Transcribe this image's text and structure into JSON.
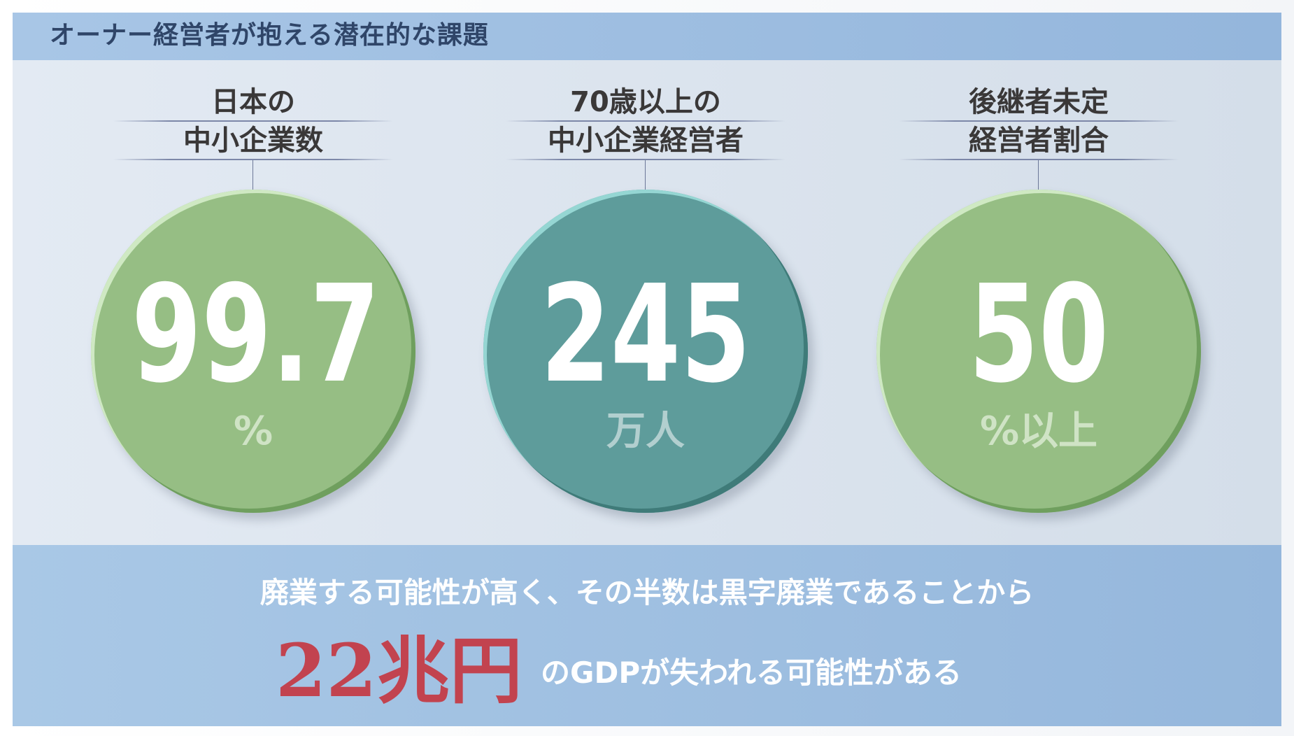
{
  "header": {
    "title": "オーナー経営者が抱える潜在的な課題"
  },
  "stats": [
    {
      "label_line1": "日本の",
      "label_line2": "中小企業数",
      "value": "99.7",
      "unit": "%",
      "color": "#96be84",
      "rim": "#cfe9c3",
      "shade": "#6f9f5e",
      "unit_color": "#cfe3c5"
    },
    {
      "label_line1": "70歳以上の",
      "label_line2": "中小企業経営者",
      "value": "245",
      "unit": "万人",
      "color": "#5e9c9b",
      "rim": "#95d6d3",
      "shade": "#3f7b79",
      "unit_color": "#b2cfcf"
    },
    {
      "label_line1": "後継者未定",
      "label_line2": "経営者割合",
      "value": "50",
      "unit": "%以上",
      "color": "#96be84",
      "rim": "#cfe9c3",
      "shade": "#6f9f5e",
      "unit_color": "#cfe3c5"
    }
  ],
  "bottom": {
    "line1": "廃業する可能性が高く、その半数は黒字廃業であることから",
    "highlight": "22兆円",
    "line2": "のGDPが失われる可能性がある",
    "highlight_color": "#c2434f"
  }
}
